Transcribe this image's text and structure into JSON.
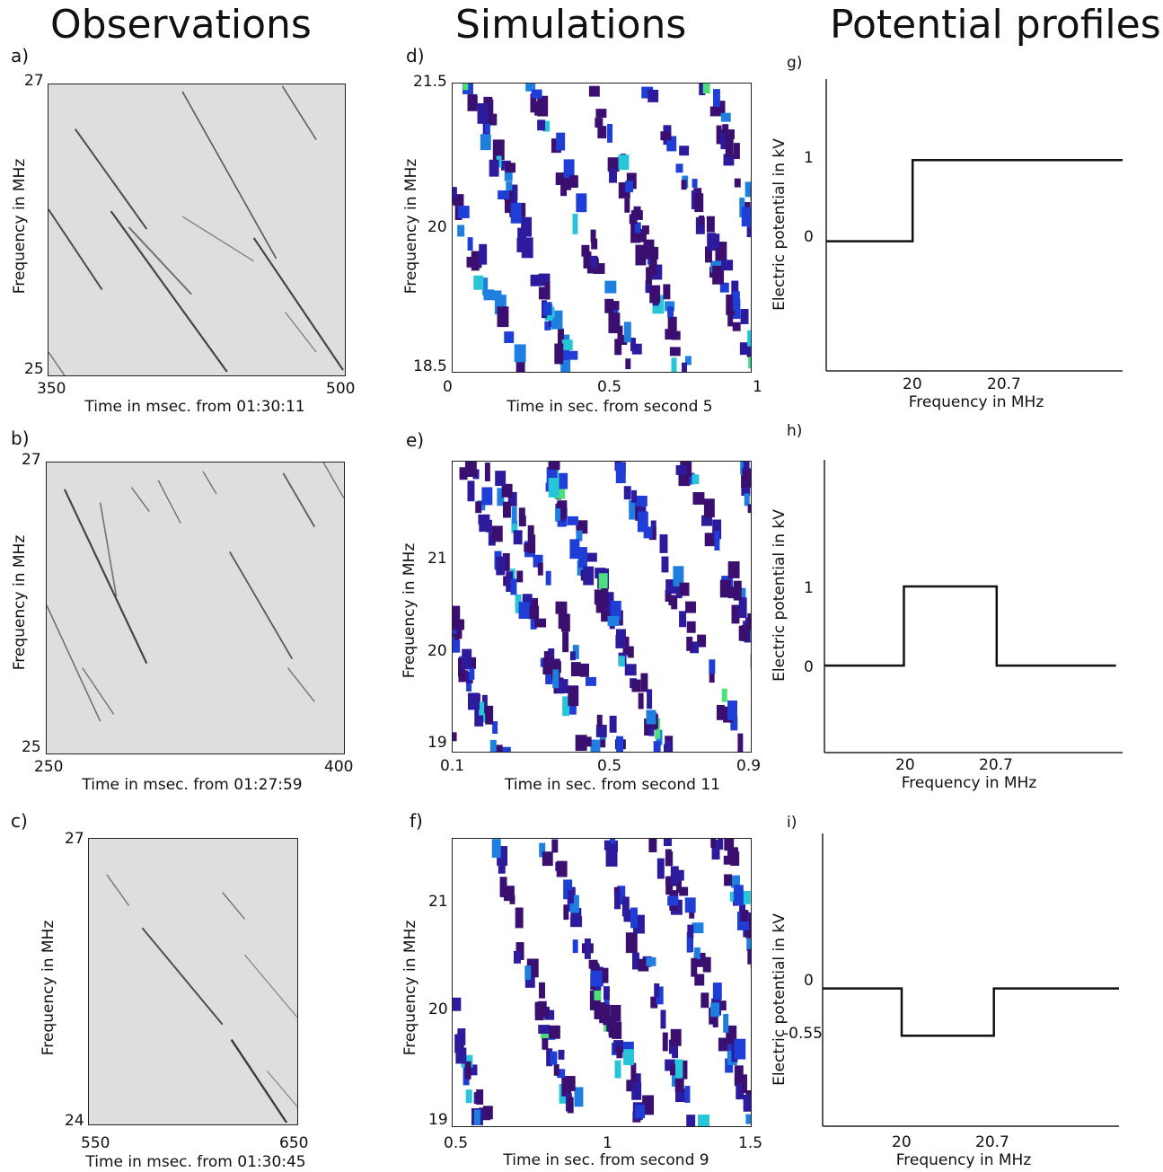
{
  "titles": {
    "observations": "Observations",
    "simulations": "Simulations",
    "profiles": "Potential profiles"
  },
  "colors": {
    "obs_bg": "#dedede",
    "obs_stripe": "#2a2a2a",
    "sim_palette": [
      "#3b0f6f",
      "#2c1b9c",
      "#1f3ed6",
      "#1e7fe0",
      "#26c6d8",
      "#4be07a"
    ]
  },
  "chart_data": [
    {
      "id": "a",
      "panel_label": "a)",
      "type": "heatmap",
      "xlabel": "Time in msec. from 01:30:11",
      "ylabel": "Frequency in MHz",
      "xticks": [
        "350",
        "500"
      ],
      "yticks": [
        "27",
        "25"
      ],
      "xlim": [
        350,
        500
      ],
      "ylim": [
        25,
        27
      ]
    },
    {
      "id": "b",
      "panel_label": "b)",
      "type": "heatmap",
      "xlabel": "Time in msec. from 01:27:59",
      "ylabel": "Frequency in MHz",
      "xticks": [
        "250",
        "400"
      ],
      "yticks": [
        "27",
        "25"
      ],
      "xlim": [
        250,
        400
      ],
      "ylim": [
        25,
        27
      ]
    },
    {
      "id": "c",
      "panel_label": "c)",
      "type": "heatmap",
      "xlabel": "Time in msec. from 01:30:45",
      "ylabel": "Frequency in MHz",
      "xticks": [
        "550",
        "650"
      ],
      "yticks": [
        "27",
        "24"
      ],
      "xlim": [
        550,
        650
      ],
      "ylim": [
        24,
        27
      ]
    },
    {
      "id": "d",
      "panel_label": "d)",
      "type": "heatmap",
      "xlabel": "Time in sec. from second 5",
      "ylabel": "Frequency in MHz",
      "xticks": [
        "0",
        "0.5",
        "1"
      ],
      "yticks": [
        "21.5",
        "20",
        "18.5"
      ],
      "xlim": [
        0,
        1
      ],
      "ylim": [
        18.5,
        21.5
      ]
    },
    {
      "id": "e",
      "panel_label": "e)",
      "type": "heatmap",
      "xlabel": "Time in sec. from second 11",
      "ylabel": "Frequency in MHz",
      "xticks": [
        "0.1",
        "0.5",
        "0.9"
      ],
      "yticks": [
        "21",
        "20",
        "19"
      ],
      "xlim": [
        0.1,
        0.9
      ],
      "ylim": [
        18.9,
        22.0
      ]
    },
    {
      "id": "f",
      "panel_label": "f)",
      "type": "heatmap",
      "xlabel": "Time in sec. from second 9",
      "ylabel": "Frequency in MHz",
      "xticks": [
        "0.5",
        "1",
        "1.5"
      ],
      "yticks": [
        "21",
        "20",
        "19"
      ],
      "xlim": [
        0.5,
        1.5
      ],
      "ylim": [
        18.95,
        21.6
      ]
    },
    {
      "id": "g",
      "panel_label": "g)",
      "type": "line",
      "xlabel": "Frequency in MHz",
      "ylabel": "Electric potential in kV",
      "xticks": [
        "20",
        "20.7"
      ],
      "yticks": [
        "1",
        "0"
      ],
      "xlim": [
        19.3,
        21.7
      ],
      "ylim": [
        -1.6,
        2.0
      ],
      "series": [
        {
          "x": [
            19.3,
            20.0,
            20.0,
            21.7
          ],
          "y": [
            0,
            0,
            1.0,
            1.0
          ]
        }
      ]
    },
    {
      "id": "h",
      "panel_label": "h)",
      "type": "line",
      "xlabel": "Frequency in MHz",
      "ylabel": "Electric potential in kV",
      "xticks": [
        "20",
        "20.7"
      ],
      "yticks": [
        "1",
        "0"
      ],
      "xlim": [
        19.4,
        21.65
      ],
      "ylim": [
        -1.1,
        2.6
      ],
      "series": [
        {
          "x": [
            19.4,
            20.0,
            20.0,
            20.7,
            20.7,
            21.6
          ],
          "y": [
            0,
            0,
            1.0,
            1.0,
            0,
            0
          ]
        }
      ]
    },
    {
      "id": "i",
      "panel_label": "i)",
      "type": "line",
      "xlabel": "Frequency in MHz",
      "ylabel": "Electric potential in kV",
      "xticks": [
        "20",
        "20.7"
      ],
      "yticks": [
        "0",
        "-0.55"
      ],
      "xlim": [
        19.4,
        21.65
      ],
      "ylim": [
        -1.6,
        1.8
      ],
      "series": [
        {
          "x": [
            19.4,
            20.0,
            20.0,
            20.7,
            20.7,
            21.65
          ],
          "y": [
            0,
            0,
            -0.55,
            -0.55,
            0,
            0
          ]
        }
      ]
    }
  ]
}
